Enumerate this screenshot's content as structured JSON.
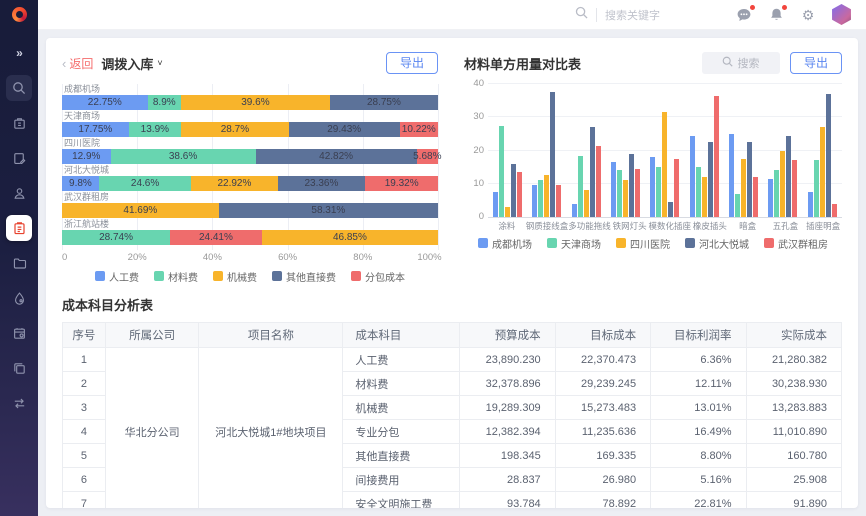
{
  "header": {
    "search_placeholder": "搜索关键字",
    "icons": [
      "search",
      "message",
      "bell",
      "gear",
      "avatar"
    ],
    "badge_color": "#F2453D"
  },
  "sidebar": {
    "icons": [
      "expand",
      "search",
      "building",
      "document-edit",
      "user",
      "cost-clipboard",
      "folder",
      "drop",
      "calendar",
      "layers",
      "transfer"
    ],
    "active_index": 5,
    "active_color": "#E8432F"
  },
  "left_panel": {
    "back_chevron": "‹",
    "back_label": "返回",
    "title": "调拨入库",
    "caret": "▼",
    "export_label": "导出"
  },
  "right_panel": {
    "title": "材料单方用量对比表",
    "search_placeholder": "搜索",
    "export_label": "导出"
  },
  "palette": {
    "人工费": "#6C9BF2",
    "材料费": "#68D5B0",
    "机械费": "#F8B42B",
    "其他直接费": "#5C7299",
    "分包成本": "#EF6C6C"
  },
  "chart_data": [
    {
      "type": "bar",
      "orientation": "horizontal-stacked",
      "title": "调拨入库",
      "xlabel": "",
      "ylabel": "",
      "xlim": [
        0,
        100
      ],
      "x_ticks": [
        "0",
        "20%",
        "40%",
        "60%",
        "80%",
        "100%"
      ],
      "legend": [
        "人工费",
        "材料费",
        "机械费",
        "其他直接费",
        "分包成本"
      ],
      "legend_position": "bottom",
      "grid": true,
      "categories": [
        "成都机场",
        "天津商场",
        "四川医院",
        "河北大悦城",
        "武汉群租房",
        "浙江航站楼"
      ],
      "rows": [
        {
          "category": "成都机场",
          "segments": [
            {
              "series": "人工费",
              "value": 22.75,
              "label": "22.75%"
            },
            {
              "series": "材料费",
              "value": 8.9,
              "label": "8.9%"
            },
            {
              "series": "机械费",
              "value": 39.6,
              "label": "39.6%"
            },
            {
              "series": "其他直接费",
              "value": 28.75,
              "label": "28.75%"
            }
          ]
        },
        {
          "category": "天津商场",
          "segments": [
            {
              "series": "人工费",
              "value": 17.75,
              "label": "17.75%"
            },
            {
              "series": "材料费",
              "value": 13.9,
              "label": "13.9%"
            },
            {
              "series": "机械费",
              "value": 28.7,
              "label": "28.7%"
            },
            {
              "series": "其他直接费",
              "value": 29.43,
              "label": "29.43%"
            },
            {
              "series": "分包成本",
              "value": 10.22,
              "label": "10.22%"
            }
          ]
        },
        {
          "category": "四川医院",
          "segments": [
            {
              "series": "人工费",
              "value": 12.9,
              "label": "12.9%"
            },
            {
              "series": "材料费",
              "value": 38.6,
              "label": "38.6%"
            },
            {
              "series": "其他直接费",
              "value": 42.82,
              "label": "42.82%"
            },
            {
              "series": "分包成本",
              "value": 5.68,
              "label": "5.68%"
            }
          ]
        },
        {
          "category": "河北大悦城",
          "segments": [
            {
              "series": "人工费",
              "value": 9.8,
              "label": "9.8%"
            },
            {
              "series": "材料费",
              "value": 24.6,
              "label": "24.6%"
            },
            {
              "series": "机械费",
              "value": 22.92,
              "label": "22.92%"
            },
            {
              "series": "其他直接费",
              "value": 23.36,
              "label": "23.36%"
            },
            {
              "series": "分包成本",
              "value": 19.32,
              "label": "19.32%"
            }
          ]
        },
        {
          "category": "武汉群租房",
          "segments": [
            {
              "series": "机械费",
              "value": 41.69,
              "label": "41.69%"
            },
            {
              "series": "其他直接费",
              "value": 58.31,
              "label": "58.31%"
            }
          ]
        },
        {
          "category": "浙江航站楼",
          "segments": [
            {
              "series": "材料费",
              "value": 28.74,
              "label": "28.74%"
            },
            {
              "series": "分包成本",
              "value": 24.41,
              "label": "24.41%"
            },
            {
              "series": "机械费",
              "value": 46.85,
              "label": "46.85%"
            }
          ]
        }
      ]
    },
    {
      "type": "bar",
      "orientation": "vertical-grouped",
      "title": "材料单方用量对比表",
      "xlabel": "",
      "ylabel": "",
      "ylim": [
        0,
        40
      ],
      "y_ticks": [
        0,
        10,
        20,
        30,
        40
      ],
      "grid": true,
      "legend_position": "bottom",
      "categories": [
        "涂料",
        "钢质接线盒",
        "多功能拖线",
        "铁网灯头",
        "模数化插座",
        "橡皮插头",
        "暗盒",
        "五孔盒",
        "插座明盒"
      ],
      "series": [
        {
          "name": "成都机场",
          "color": "#6C9BF2",
          "values": [
            7.5,
            9.5,
            4,
            16.5,
            18,
            24.5,
            25,
            11.5,
            7.5
          ]
        },
        {
          "name": "天津商场",
          "color": "#68D5B0",
          "values": [
            27.5,
            11,
            18.5,
            14,
            15,
            15,
            7,
            14,
            17
          ]
        },
        {
          "name": "四川医院",
          "color": "#F8B42B",
          "values": [
            3,
            12.5,
            8,
            11,
            31.5,
            12,
            17.5,
            20,
            27
          ]
        },
        {
          "name": "河北大悦城",
          "color": "#5C7299",
          "values": [
            16,
            37.5,
            27,
            19,
            4.5,
            22.5,
            22.5,
            24.5,
            37
          ]
        },
        {
          "name": "武汉群租房",
          "color": "#EF6C6C",
          "values": [
            13.5,
            9.5,
            21.5,
            14.5,
            17.5,
            36.5,
            12,
            17,
            4
          ]
        }
      ]
    }
  ],
  "table": {
    "title": "成本科目分析表",
    "columns": [
      "序号",
      "所属公司",
      "项目名称",
      "成本科目",
      "预算成本",
      "目标成本",
      "目标利润率",
      "实际成本"
    ],
    "merged_company": "华北分公司",
    "merged_project": "河北大悦城1#地块项目",
    "rows": [
      {
        "seq": "1",
        "subject": "人工费",
        "budget": "23,890.230",
        "target": "22,370.473",
        "margin": "6.36%",
        "actual": "21,280.382"
      },
      {
        "seq": "2",
        "subject": "材料费",
        "budget": "32,378.896",
        "target": "29,239.245",
        "margin": "12.11%",
        "actual": "30,238.930"
      },
      {
        "seq": "3",
        "subject": "机械费",
        "budget": "19,289.309",
        "target": "15,273.483",
        "margin": "13.01%",
        "actual": "13,283.883"
      },
      {
        "seq": "4",
        "subject": "专业分包",
        "budget": "12,382.394",
        "target": "11,235.636",
        "margin": "16.49%",
        "actual": "11,010.890"
      },
      {
        "seq": "5",
        "subject": "其他直接费",
        "budget": "198.345",
        "target": "169.335",
        "margin": "8.80%",
        "actual": "160.780"
      },
      {
        "seq": "6",
        "subject": "间接费用",
        "budget": "28.837",
        "target": "26.980",
        "margin": "5.16%",
        "actual": "25.908"
      },
      {
        "seq": "7",
        "subject": "安全文明施工费",
        "budget": "93.784",
        "target": "78.892",
        "margin": "22.81%",
        "actual": "91.890"
      }
    ]
  }
}
